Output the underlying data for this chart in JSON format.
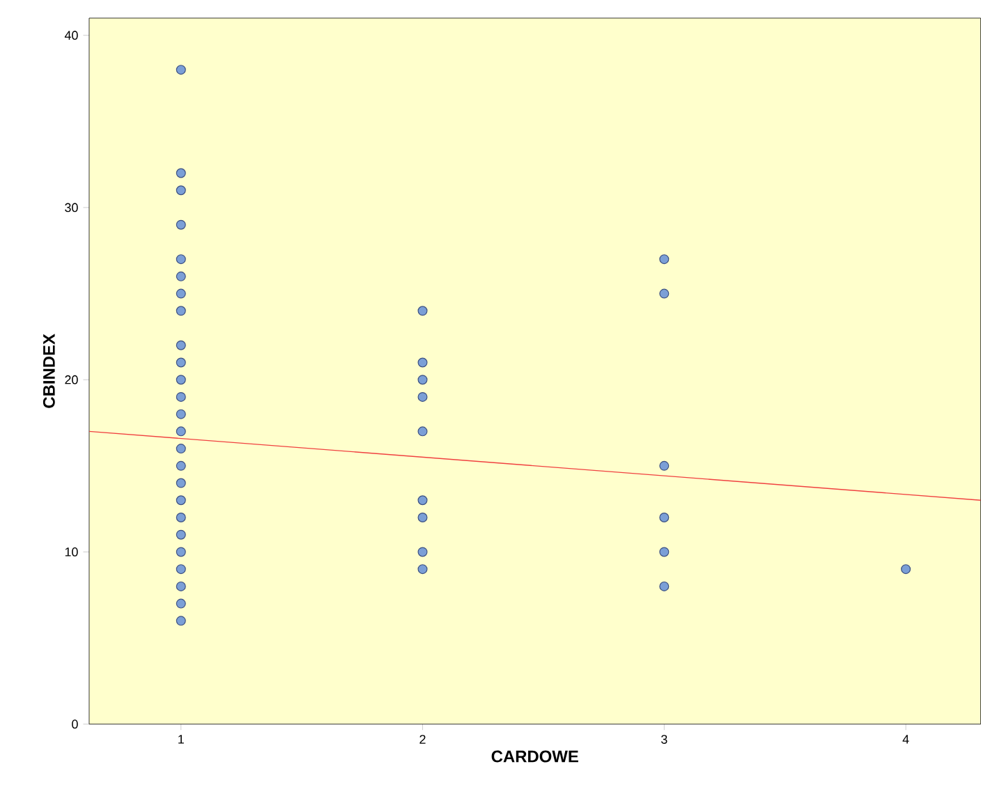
{
  "chart_data": {
    "type": "scatter",
    "xlabel": "CARDOWE",
    "ylabel": "CBINDEX",
    "xlim": [
      0.62,
      4.31
    ],
    "ylim": [
      0,
      41
    ],
    "xticks": [
      1,
      2,
      3,
      4
    ],
    "yticks": [
      0,
      10,
      20,
      30,
      40
    ],
    "grid": false,
    "series": [
      {
        "marker": "circle",
        "color": "#7b9fd6",
        "x": [
          1,
          1,
          1,
          1,
          1,
          1,
          1,
          1,
          1,
          1,
          1,
          1,
          1,
          1,
          1,
          1,
          1,
          1,
          1,
          1,
          1,
          1,
          1,
          1,
          1,
          2,
          2,
          2,
          2,
          2,
          2,
          2,
          2,
          2,
          3,
          3,
          3,
          3,
          3,
          3,
          4
        ],
        "values": [
          38,
          32,
          31,
          29,
          27,
          26,
          25,
          24,
          22,
          21,
          20,
          19,
          18,
          17,
          16,
          15,
          14,
          13,
          12,
          11,
          10,
          9,
          8,
          7,
          6,
          24,
          21,
          20,
          19,
          17,
          13,
          12,
          10,
          9,
          27,
          25,
          15,
          12,
          10,
          8,
          9
        ]
      },
      {
        "type": "line",
        "color": "#f04040",
        "line_style": "solid",
        "marker": "none",
        "x": [
          0.62,
          4.31
        ],
        "values": [
          17.0,
          13.0
        ]
      }
    ]
  }
}
